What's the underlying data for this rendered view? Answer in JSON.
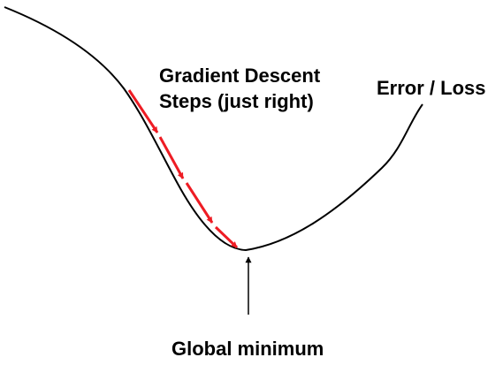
{
  "labels": {
    "steps_line1": "Gradient Descent",
    "steps_line2": "Steps (just right)",
    "curve": "Error / Loss",
    "minimum": "Global minimum"
  },
  "colors": {
    "curve": "#000000",
    "steps": "#ee1c24",
    "minimum_pointer": "#000000"
  }
}
